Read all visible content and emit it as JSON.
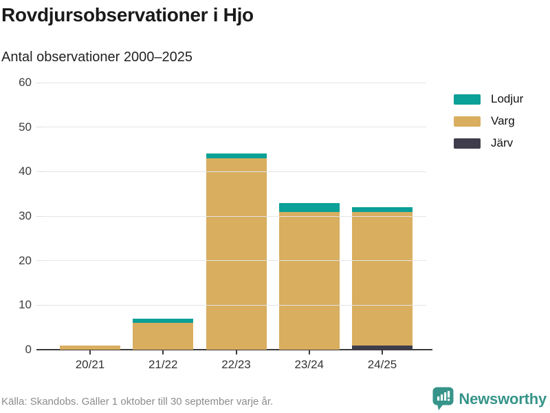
{
  "header": {
    "title": "Rovdjursobservationer i Hjo",
    "subtitle": "Antal observationer 2000–2025"
  },
  "chart_data": {
    "type": "bar",
    "stacked": true,
    "categories": [
      "20/21",
      "21/22",
      "22/23",
      "23/24",
      "24/25"
    ],
    "series": [
      {
        "name": "Lodjur",
        "color": "#0ba098",
        "values": [
          0,
          1,
          1,
          2,
          1
        ]
      },
      {
        "name": "Varg",
        "color": "#d9ae5f",
        "values": [
          1,
          6,
          43,
          31,
          30
        ]
      },
      {
        "name": "Järv",
        "color": "#3f3d4b",
        "values": [
          0,
          0,
          0,
          0,
          1
        ]
      }
    ],
    "totals": [
      1,
      7,
      44,
      33,
      32
    ],
    "ylim": [
      0,
      60
    ],
    "yticks": [
      0,
      10,
      20,
      30,
      40,
      50,
      60
    ],
    "grid": true,
    "legend_position": "right",
    "grid_color": "#e4e4e4",
    "axis_color": "#3a3a3a"
  },
  "footer": {
    "source": "Källa: Skandobs. Gäller 1 oktober till 30 september varje år.",
    "brand": "Newsworthy",
    "brand_color": "#37948a"
  }
}
